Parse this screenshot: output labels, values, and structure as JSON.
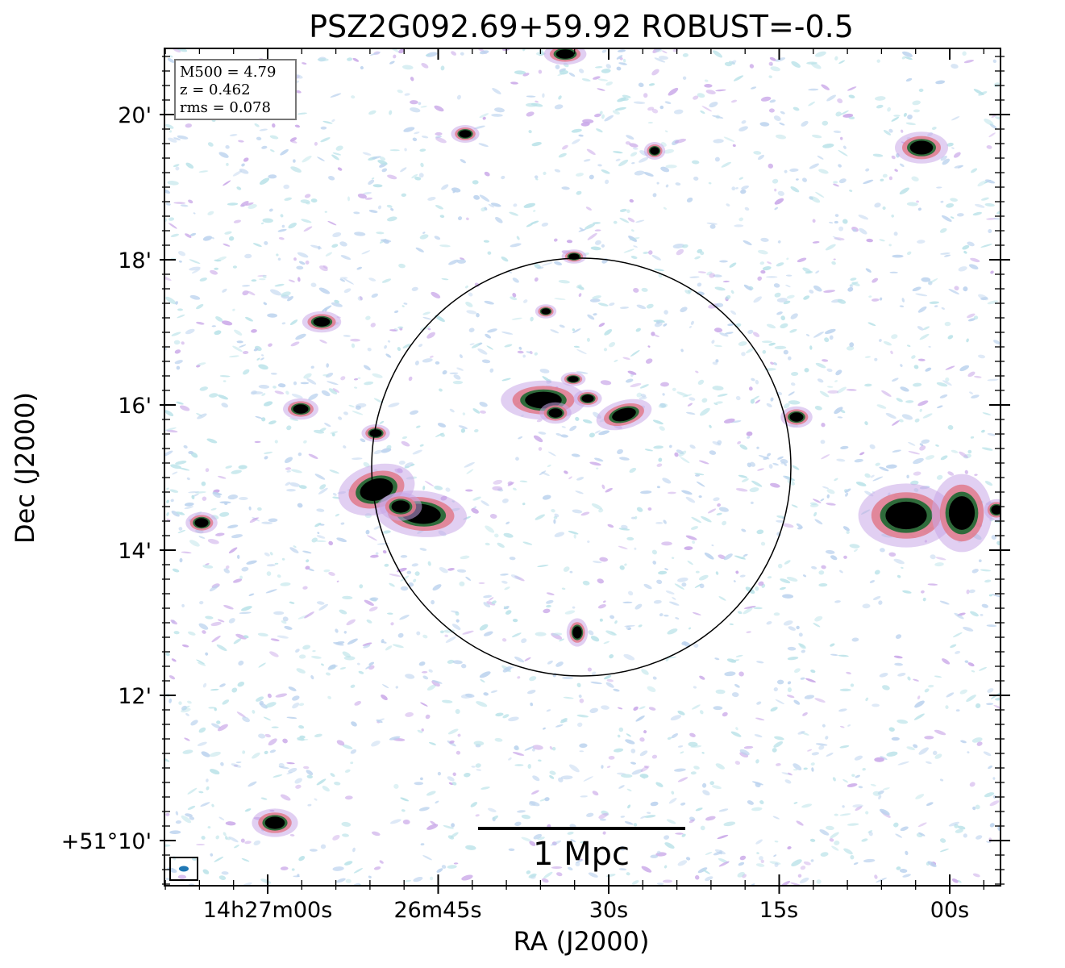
{
  "title": "PSZ2G092.69+59.92 ROBUST=-0.5",
  "axes": {
    "xlabel": "RA (J2000)",
    "ylabel": "Dec (J2000)",
    "x_ticks": [
      "14h27m00s",
      "26m45s",
      "30s",
      "15s",
      "00s"
    ],
    "y_ticks": [
      "20'",
      "18'",
      "16'",
      "14'",
      "12'",
      "+51°10'"
    ]
  },
  "info_box": {
    "m500": "M500 = 4.79",
    "z": "z = 0.462",
    "rms": "rms = 0.078"
  },
  "scale_bar": {
    "label": "1 Mpc"
  },
  "colors": {
    "noise_light": "#bcd3ee",
    "noise_cyan": "#b9e2e8",
    "noise_purple": "#c9a7e8",
    "source_core": "#000000",
    "source_green": "#2f6b3b",
    "source_rim": "#e07a8c",
    "beam": "#1f77b4"
  }
}
